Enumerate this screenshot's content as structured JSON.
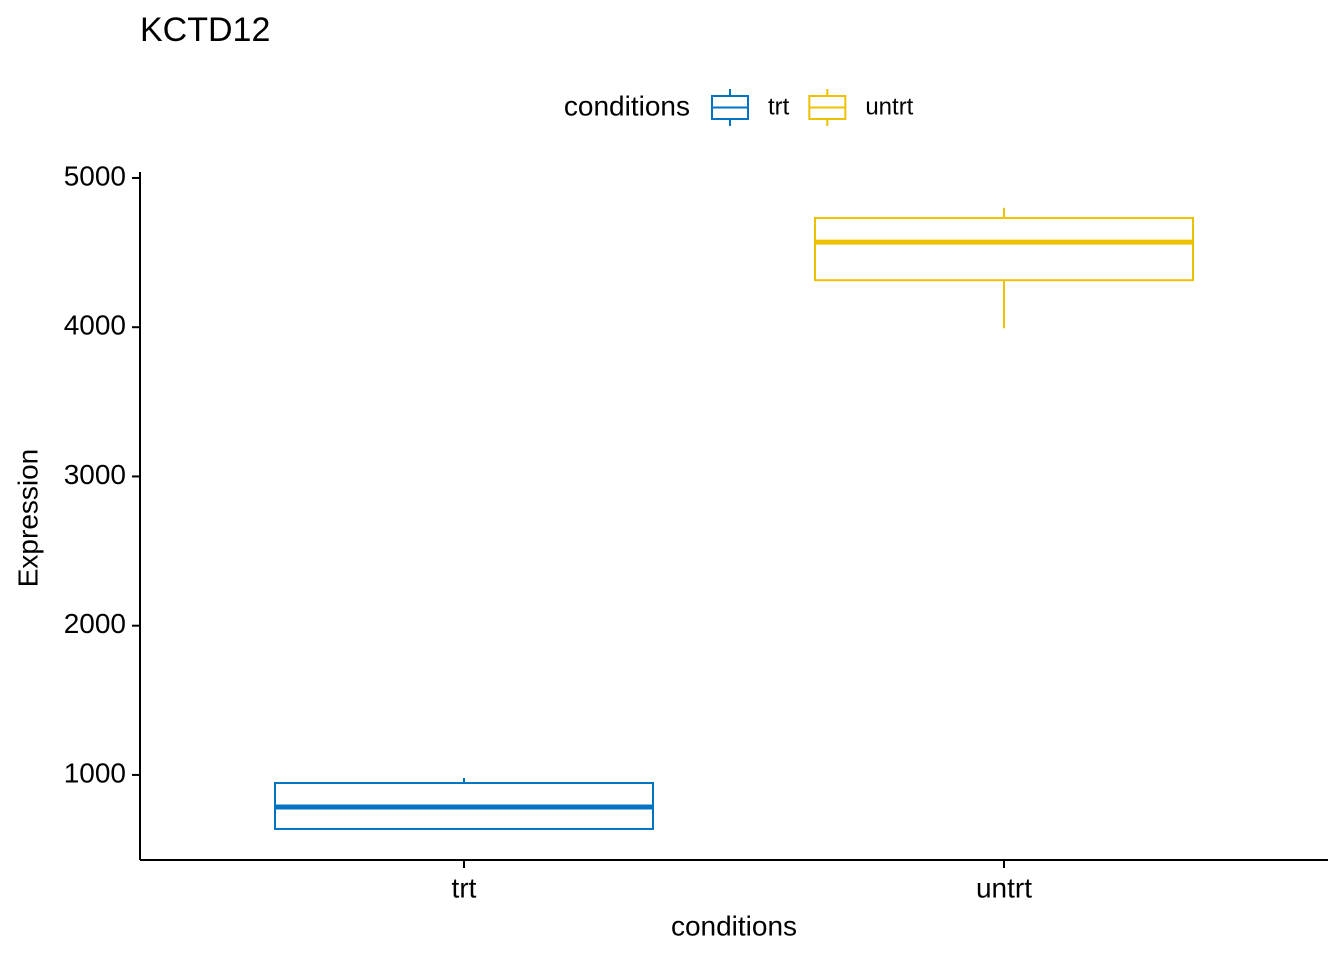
{
  "chart_data": {
    "type": "box",
    "title": "KCTD12",
    "x_label": "conditions",
    "y_label": "Expression",
    "legend_title": "conditions",
    "categories": [
      "trt",
      "untrt"
    ],
    "series": [
      {
        "name": "trt",
        "color": "#0073C2",
        "min": 638,
        "q1": 638,
        "median": 785,
        "q3": 946,
        "max": 980
      },
      {
        "name": "untrt",
        "color": "#EFC000",
        "min": 3993,
        "q1": 4315,
        "median": 4570,
        "q3": 4732,
        "max": 4800
      }
    ],
    "ylim": [
      430,
      5040
    ],
    "yticks": [
      1000,
      2000,
      3000,
      4000,
      5000
    ],
    "grid": false,
    "legend": "top"
  }
}
